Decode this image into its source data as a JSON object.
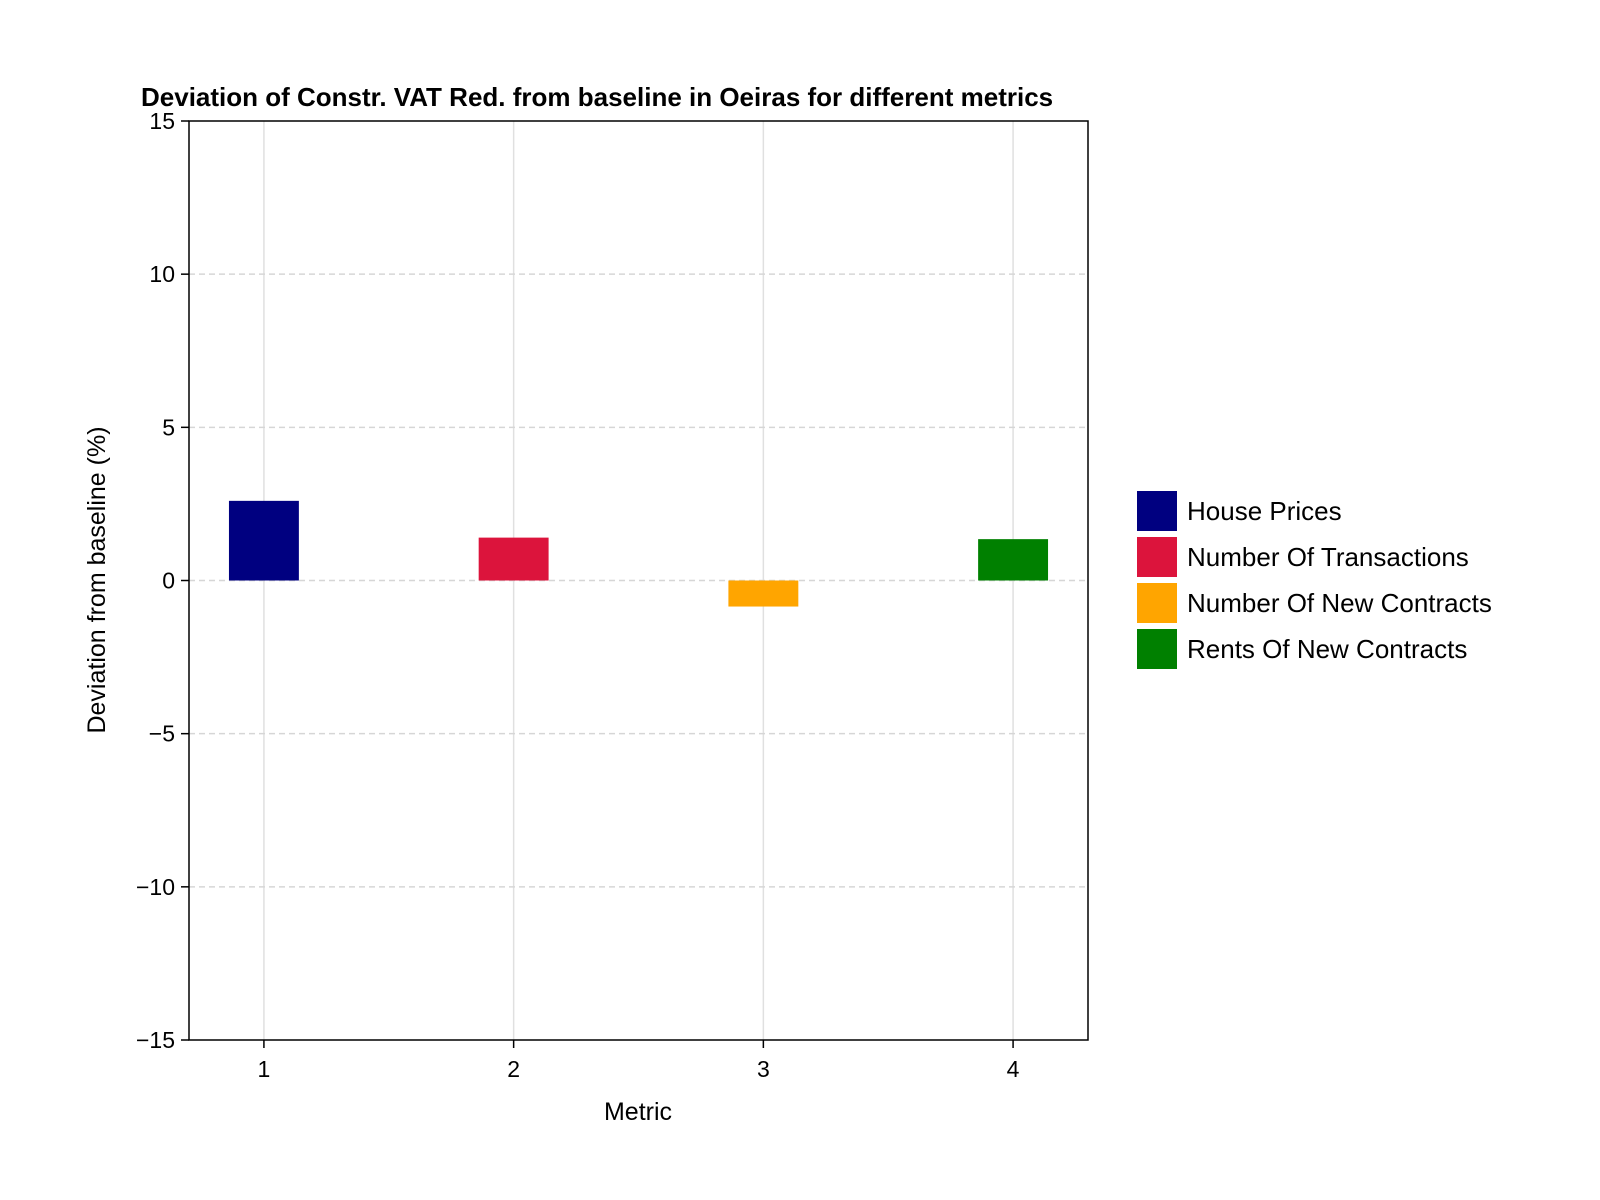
{
  "chart_data": {
    "type": "bar",
    "title": "Deviation of Constr. VAT Red. from baseline in Oeiras for different metrics",
    "xlabel": "Metric",
    "ylabel": "Deviation from baseline (%)",
    "categories": [
      "1",
      "2",
      "3",
      "4"
    ],
    "x": [
      1,
      2,
      3,
      4
    ],
    "series": [
      {
        "name": "House Prices",
        "color": "#000080",
        "x": 1,
        "value": 2.6
      },
      {
        "name": "Number Of Transactions",
        "color": "#dc143c",
        "x": 2,
        "value": 1.4
      },
      {
        "name": "Number Of New Contracts",
        "color": "#ffa500",
        "x": 3,
        "value": -0.85
      },
      {
        "name": "Rents Of New Contracts",
        "color": "#008000",
        "x": 4,
        "value": 1.35
      }
    ],
    "xlim": [
      0.7,
      4.3
    ],
    "ylim": [
      -15,
      15
    ],
    "yticks": [
      -15,
      -10,
      -5,
      0,
      5,
      10,
      15
    ],
    "ytick_labels": [
      "−15",
      "−10",
      "−5",
      "0",
      "5",
      "10",
      "15"
    ],
    "xticks": [
      1,
      2,
      3,
      4
    ],
    "xtick_labels": [
      "1",
      "2",
      "3",
      "4"
    ],
    "grid": {
      "x": "solid",
      "y": "dashed"
    },
    "legend_position": "right"
  }
}
